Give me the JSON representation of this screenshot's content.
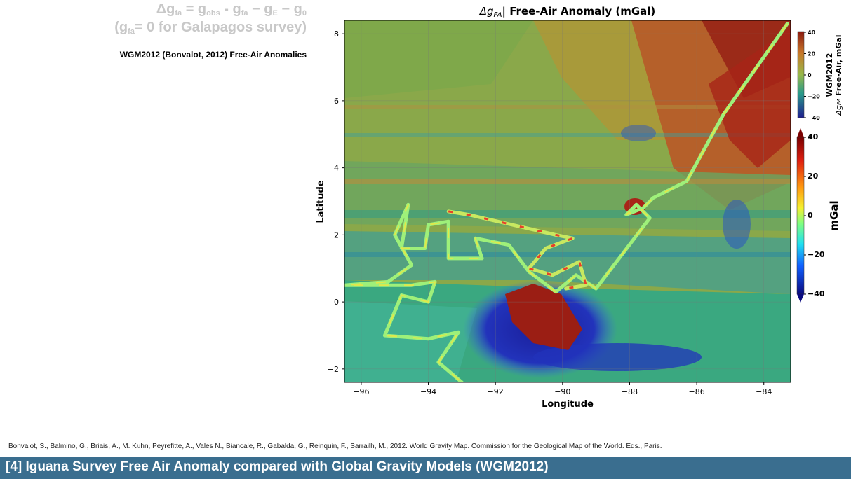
{
  "equation": {
    "line1_parts": [
      "Δg",
      "fa",
      " = g",
      "obs",
      "  -  g",
      "fa",
      "  −  g",
      "E",
      " −  g",
      "0"
    ],
    "line2_parts": [
      "(g",
      "fa",
      "= 0 for Galapagos survey)"
    ]
  },
  "left_caption": "WGM2012 (Bonvalot, 2012) Free-Air Anomalies",
  "citation": "Bonvalot, S., Balmino, G., Briais, A., M. Kuhn, Peyrefitte, A., Vales N., Biancale, R., Gabalda, G., Reinquin, F., Sarrailh, M., 2012. World Gravity Map. Commission for the Geological Map of the World. Eds., Paris.",
  "footer_title": "[4] Iguana Survey Free Air Anomaly compared with Global Gravity Models (WGM2012)",
  "chart_data": {
    "type": "heatmap",
    "title_symbol": "Δg",
    "title_symbol_sub": "FA",
    "title_text": "| Free-Air Anomaly (mGal)",
    "xlabel": "Longitude",
    "ylabel": "Latitude",
    "xlim": [
      -96.5,
      -83.2
    ],
    "ylim": [
      -2.4,
      8.4
    ],
    "x_ticks": [
      -96,
      -94,
      -92,
      -90,
      -88,
      -86,
      -84
    ],
    "x_tick_labels": [
      "−96",
      "−94",
      "−92",
      "−90",
      "−88",
      "−86",
      "−84"
    ],
    "y_ticks": [
      -2,
      0,
      2,
      4,
      6,
      8
    ],
    "y_tick_labels": [
      "−2",
      "0",
      "2",
      "4",
      "6",
      "8"
    ],
    "grid": true,
    "colorbar_wgm": {
      "label_line1": "WGM2012",
      "label_line2": "Free-Air, mGal",
      "label_symbol": "Δg",
      "label_symbol_sub": "FA",
      "range": [
        -40,
        40
      ],
      "ticks": [
        40,
        20,
        0,
        -20,
        -40
      ],
      "tick_labels": [
        "40",
        "20",
        "0",
        "−20",
        "−40"
      ]
    },
    "colorbar_survey": {
      "label": "mGal",
      "range": [
        -40,
        40
      ],
      "ticks": [
        40,
        20,
        0,
        -20,
        -40
      ],
      "tick_labels": [
        "40",
        "20",
        "0",
        "−20",
        "−40"
      ],
      "extend": "both"
    },
    "ship_track": [
      [
        -83.3,
        8.3
      ],
      [
        -85.2,
        5.6
      ],
      [
        -86.3,
        3.6
      ],
      [
        -87.3,
        3.1
      ],
      [
        -87.6,
        2.8
      ],
      [
        -88.1,
        2.6
      ],
      [
        -87.8,
        2.9
      ],
      [
        -87.4,
        2.5
      ],
      [
        -89.0,
        0.4
      ],
      [
        -89.6,
        0.8
      ],
      [
        -90.2,
        0.3
      ],
      [
        -91.0,
        0.9
      ],
      [
        -91.6,
        1.7
      ],
      [
        -92.6,
        1.9
      ],
      [
        -92.4,
        1.3
      ],
      [
        -93.4,
        1.3
      ],
      [
        -93.4,
        2.4
      ],
      [
        -94.0,
        2.3
      ],
      [
        -94.1,
        1.6
      ],
      [
        -94.8,
        1.6
      ],
      [
        -94.6,
        2.9
      ],
      [
        -95.0,
        2.0
      ],
      [
        -94.5,
        1.1
      ],
      [
        -95.2,
        0.6
      ],
      [
        -96.5,
        0.5
      ],
      [
        -94.5,
        0.5
      ],
      [
        -93.8,
        0.6
      ],
      [
        -94.0,
        0.0
      ],
      [
        -94.8,
        0.2
      ],
      [
        -95.3,
        -1.0
      ],
      [
        -94.0,
        -1.1
      ],
      [
        -93.1,
        -0.9
      ],
      [
        -93.7,
        -1.8
      ],
      [
        -93.0,
        -2.4
      ]
    ],
    "ship_track_b": [
      [
        -93.4,
        2.7
      ],
      [
        -92.8,
        2.6
      ],
      [
        -91.5,
        2.3
      ],
      [
        -90.2,
        2.0
      ],
      [
        -89.7,
        1.9
      ],
      [
        -90.5,
        1.6
      ],
      [
        -91.0,
        1.0
      ],
      [
        -90.3,
        0.8
      ],
      [
        -89.5,
        1.2
      ],
      [
        -89.3,
        0.5
      ],
      [
        -89.9,
        0.4
      ]
    ]
  }
}
